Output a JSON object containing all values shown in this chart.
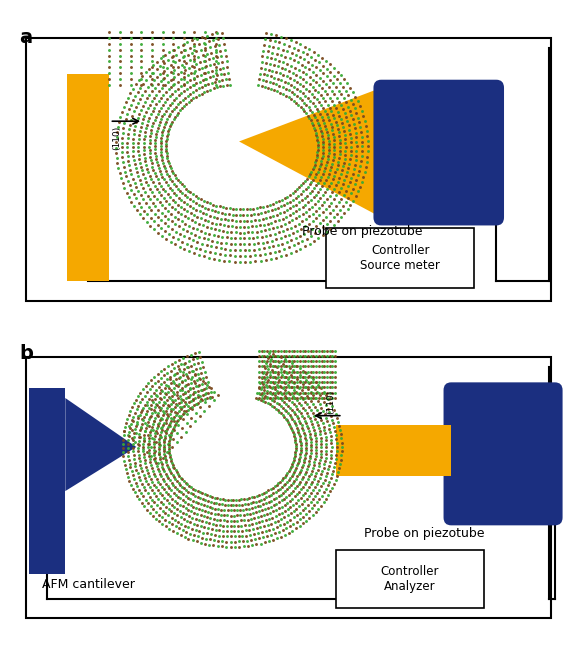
{
  "fig_width": 5.77,
  "fig_height": 6.46,
  "dpi": 100,
  "bg_color": "#ffffff",
  "gold_color": "#F5A800",
  "dark_blue_color": "#1B2F80",
  "green_dot_color": "#3aaa35",
  "brown_dot_color": "#7a4a1e",
  "panel_a_label": "a",
  "panel_b_label": "b",
  "label_probe_piezotube": "Probe on piezotube",
  "label_afm": "AFM cantilever",
  "label_controller_source": "Controller\nSource meter",
  "label_controller_analyzer": "Controller\nAnalyzer",
  "label_110": "(110)"
}
